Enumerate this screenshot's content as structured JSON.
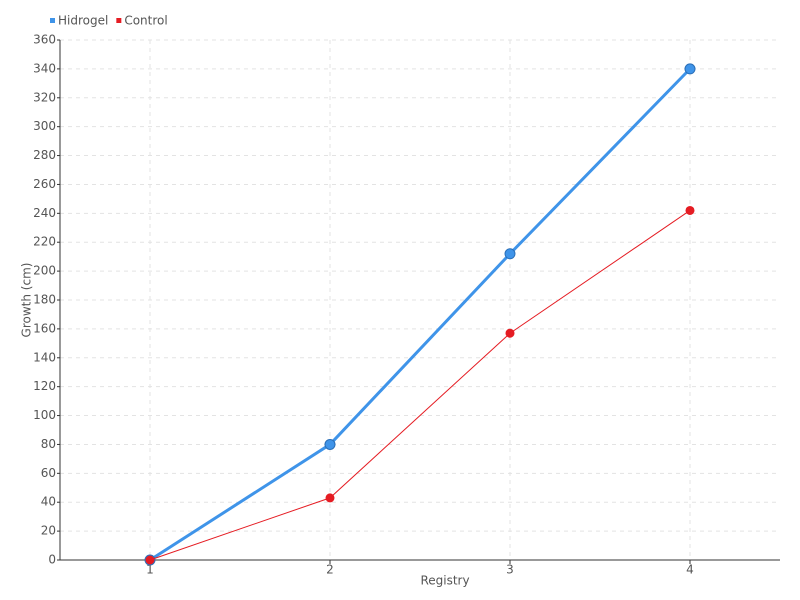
{
  "chart_data": {
    "type": "line",
    "x_label": "Registry",
    "y_label": "Growth (cm)",
    "categories": [
      "1",
      "2",
      "3",
      "4"
    ],
    "series": [
      {
        "name": "Hidrogel",
        "color": "#3f94e9",
        "values": [
          0,
          80,
          212,
          340
        ]
      },
      {
        "name": "Control",
        "color": "#e51c23",
        "values": [
          0,
          43,
          157,
          242
        ]
      }
    ],
    "ylim": [
      0,
      360
    ],
    "yticks": [
      0,
      20,
      40,
      60,
      80,
      100,
      120,
      140,
      160,
      180,
      200,
      220,
      240,
      260,
      280,
      300,
      320,
      340,
      360
    ],
    "grid": true,
    "legend": "top-left"
  }
}
